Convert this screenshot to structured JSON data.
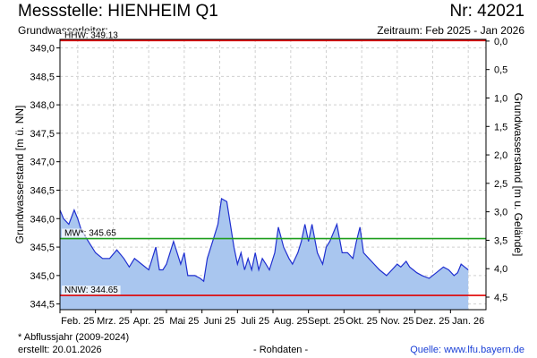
{
  "header": {
    "title": "Messstelle: HIENHEIM Q1",
    "number": "Nr: 42021",
    "subtitle": "Grundwasserleiter:",
    "range": "Zeitraum: Feb 2025 - Jan 2026"
  },
  "footer": {
    "note": "* Abflussjahr (2009-2024)",
    "created": "erstellt:  20.01.2026",
    "raw": "- Rohdaten -",
    "source": "Quelle: www.lfu.bayern.de"
  },
  "chart_data": {
    "type": "area",
    "ylabel": "Grundwasserstand [m ü. NN]",
    "y2label": "Grundwasserstand [m u. Gelände]",
    "ylim": [
      344.4,
      349.15
    ],
    "yticks": [
      349.0,
      348.5,
      348.0,
      347.5,
      347.0,
      346.5,
      346.0,
      345.5,
      345.0,
      344.5
    ],
    "ytick_labels": [
      "349,0",
      "348,5",
      "348,0",
      "347,5",
      "347,0",
      "346,5",
      "346,0",
      "345,5",
      "345,0",
      "344,5"
    ],
    "y2_ground_level": 349.12,
    "y2ticks": [
      0.0,
      0.5,
      1.0,
      1.5,
      2.0,
      2.5,
      3.0,
      3.5,
      4.0,
      4.5
    ],
    "y2tick_labels": [
      "0,0",
      "0,5",
      "1,0",
      "1,5",
      "2,0",
      "2,5",
      "3,0",
      "3,5",
      "4,0",
      "4,5"
    ],
    "xlim": [
      0,
      12
    ],
    "xtick_labels": [
      "Feb. 25",
      "Mrz. 25",
      "Apr. 25",
      "Mai 25",
      "Juni 25",
      "Juli 25",
      "Aug. 25",
      "Sept. 25",
      "Okt. 25",
      "Nov. 25",
      "Dez. 25",
      "Jan. 26"
    ],
    "reference_lines": [
      {
        "label": "HHW: 349.13",
        "value": 349.13,
        "color": "#e00000"
      },
      {
        "label": "MW*: 345.65",
        "value": 345.65,
        "color": "#1e9e1e"
      },
      {
        "label": "NNW: 344.65",
        "value": 344.65,
        "color": "#e00000"
      }
    ],
    "grid": true,
    "colors": {
      "line": "#1f2fd0",
      "fill": "#a9c6ef"
    },
    "series": [
      {
        "x": [
          0.0,
          0.1,
          0.25,
          0.4,
          0.5,
          0.6,
          0.8,
          1.0,
          1.2,
          1.4,
          1.6,
          1.8,
          1.95,
          2.1,
          2.3,
          2.5,
          2.7,
          2.8,
          2.9,
          3.0,
          3.2,
          3.4,
          3.5,
          3.6,
          3.8,
          3.95,
          4.05,
          4.15,
          4.3,
          4.45,
          4.55,
          4.7,
          4.9,
          5.0,
          5.1,
          5.2,
          5.3,
          5.4,
          5.5,
          5.6,
          5.7,
          5.8,
          5.9,
          6.05,
          6.15,
          6.3,
          6.45,
          6.55,
          6.7,
          6.8,
          6.9,
          7.0,
          7.1,
          7.25,
          7.4,
          7.5,
          7.6,
          7.8,
          7.95,
          8.1,
          8.25,
          8.35,
          8.45,
          8.55,
          8.7,
          8.85,
          9.0,
          9.2,
          9.35,
          9.5,
          9.6,
          9.75,
          9.85,
          9.95,
          10.05,
          10.2,
          10.4,
          10.6,
          10.8,
          10.95,
          11.1,
          11.2,
          11.3,
          11.4,
          11.5
        ],
        "y": [
          346.15,
          346.0,
          345.9,
          346.15,
          346.0,
          345.8,
          345.6,
          345.4,
          345.3,
          345.3,
          345.45,
          345.3,
          345.15,
          345.3,
          345.2,
          345.1,
          345.5,
          345.1,
          345.1,
          345.2,
          345.6,
          345.2,
          345.4,
          345.0,
          345.0,
          344.95,
          344.9,
          345.3,
          345.6,
          345.9,
          346.35,
          346.3,
          345.5,
          345.2,
          345.4,
          345.1,
          345.3,
          345.1,
          345.4,
          345.1,
          345.3,
          345.2,
          345.1,
          345.4,
          345.85,
          345.5,
          345.3,
          345.2,
          345.4,
          345.6,
          345.9,
          345.6,
          345.9,
          345.4,
          345.2,
          345.5,
          345.6,
          345.9,
          345.4,
          345.4,
          345.3,
          345.6,
          345.85,
          345.4,
          345.3,
          345.2,
          345.1,
          345.0,
          345.1,
          345.2,
          345.15,
          345.25,
          345.15,
          345.1,
          345.05,
          345.0,
          344.95,
          345.05,
          345.15,
          345.1,
          345.0,
          345.05,
          345.2,
          345.15,
          345.1
        ]
      }
    ]
  }
}
